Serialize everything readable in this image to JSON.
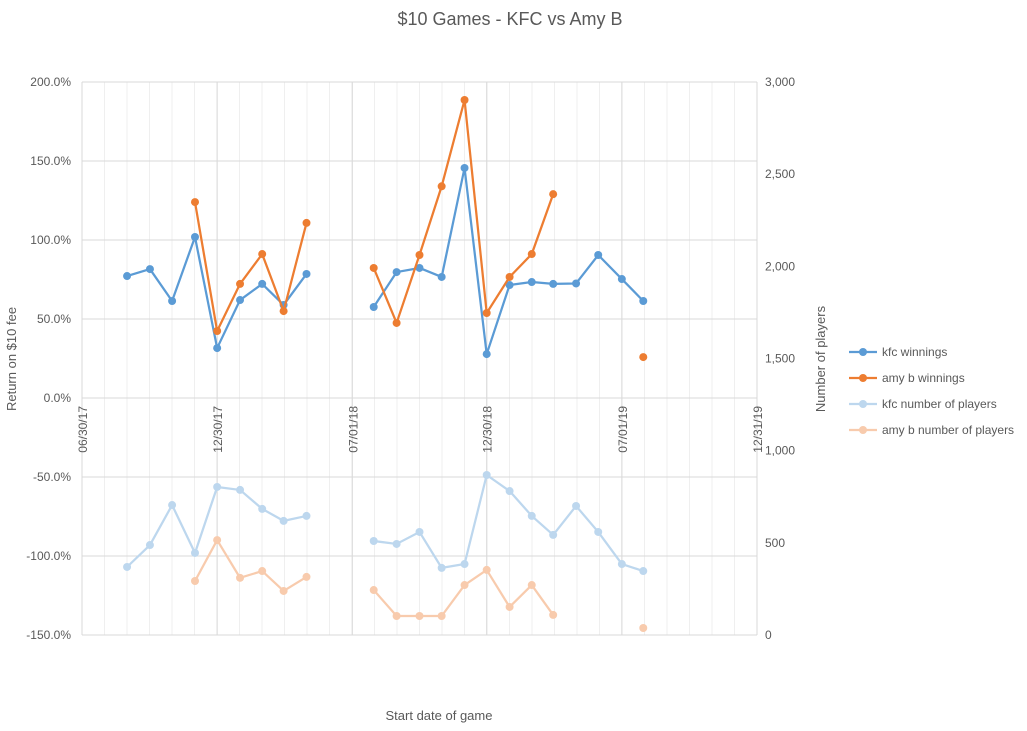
{
  "chart_data": {
    "type": "line",
    "title": "$10 Games - KFC vs Amy B",
    "xlabel": "Start date of game",
    "ylabel": "Return on $10 fee",
    "y2label": "Number of players",
    "xlim": [
      "2017-06-30",
      "2019-12-31"
    ],
    "x_ticks": [
      {
        "date": "2017-06-30",
        "label": "06/30/17"
      },
      {
        "date": "2017-12-30",
        "label": "12/30/17"
      },
      {
        "date": "2018-07-01",
        "label": "07/01/18"
      },
      {
        "date": "2018-12-30",
        "label": "12/30/18"
      },
      {
        "date": "2019-07-01",
        "label": "07/01/19"
      },
      {
        "date": "2019-12-31",
        "label": "12/31/19"
      }
    ],
    "ylim": [
      -150,
      200
    ],
    "y_ticks": [
      {
        "value": 200,
        "label": "200.0%"
      },
      {
        "value": 150,
        "label": "150.0%"
      },
      {
        "value": 100,
        "label": "100.0%"
      },
      {
        "value": 50,
        "label": "50.0%"
      },
      {
        "value": 0,
        "label": "0.0%"
      },
      {
        "value": -50,
        "label": "-50.0%"
      },
      {
        "value": -100,
        "label": "-100.0%"
      },
      {
        "value": -150,
        "label": "-150.0%"
      }
    ],
    "y2lim": [
      0,
      3000
    ],
    "y2_ticks": [
      {
        "value": 3000,
        "label": "3,000"
      },
      {
        "value": 2500,
        "label": "2,500"
      },
      {
        "value": 2000,
        "label": "2,000"
      },
      {
        "value": 1500,
        "label": "1,500"
      },
      {
        "value": 1000,
        "label": "1,000"
      },
      {
        "value": 500,
        "label": "500"
      },
      {
        "value": 0,
        "label": "0"
      }
    ],
    "grid": true,
    "legend_position": "right",
    "series": [
      {
        "name": "kfc winnings",
        "axis": "left",
        "color": "#5B9BD5",
        "segments": [
          [
            [
              "2017-08-30",
              77.2
            ],
            [
              "2017-09-30",
              81.6
            ],
            [
              "2017-10-30",
              61.4
            ],
            [
              "2017-11-30",
              101.9
            ],
            [
              "2017-12-30",
              31.6
            ],
            [
              "2018-01-30",
              62.0
            ],
            [
              "2018-03-01",
              72.2
            ],
            [
              "2018-03-30",
              58.9
            ],
            [
              "2018-04-30",
              78.5
            ]
          ],
          [
            [
              "2018-07-30",
              57.6
            ],
            [
              "2018-08-30",
              79.7
            ],
            [
              "2018-09-30",
              82.3
            ],
            [
              "2018-10-30",
              76.6
            ],
            [
              "2018-11-30",
              145.6
            ],
            [
              "2018-12-30",
              27.8
            ],
            [
              "2019-01-30",
              71.5
            ],
            [
              "2019-03-01",
              73.4
            ],
            [
              "2019-03-30",
              72.2
            ],
            [
              "2019-04-30",
              72.5
            ],
            [
              "2019-05-30",
              90.5
            ],
            [
              "2019-07-01",
              75.3
            ],
            [
              "2019-07-30",
              61.4
            ]
          ]
        ]
      },
      {
        "name": "amy b winnings",
        "axis": "left",
        "color": "#ED7D31",
        "segments": [
          [
            [
              "2017-11-30",
              124.0
            ],
            [
              "2017-12-30",
              42.4
            ],
            [
              "2018-01-30",
              72.2
            ],
            [
              "2018-03-01",
              91.1
            ],
            [
              "2018-03-30",
              55.0
            ],
            [
              "2018-04-30",
              110.8
            ]
          ],
          [
            [
              "2018-07-30",
              82.3
            ],
            [
              "2018-08-30",
              47.5
            ],
            [
              "2018-09-30",
              90.5
            ],
            [
              "2018-10-30",
              134.0
            ],
            [
              "2018-11-30",
              188.6
            ],
            [
              "2018-12-30",
              53.8
            ],
            [
              "2019-01-30",
              76.6
            ],
            [
              "2019-03-01",
              91.1
            ],
            [
              "2019-03-30",
              129.0
            ]
          ],
          [
            [
              "2019-07-30",
              25.9
            ]
          ]
        ]
      },
      {
        "name": "kfc number of players",
        "axis": "right",
        "color": "#BDD7EE",
        "segments": [
          [
            [
              "2017-08-30",
              369
            ],
            [
              "2017-09-30",
              488
            ],
            [
              "2017-10-30",
              705
            ],
            [
              "2017-11-30",
              445
            ],
            [
              "2017-12-30",
              803
            ],
            [
              "2018-01-30",
              787
            ],
            [
              "2018-03-01",
              684
            ],
            [
              "2018-03-30",
              619
            ],
            [
              "2018-04-30",
              646
            ]
          ],
          [
            [
              "2018-07-30",
              510
            ],
            [
              "2018-08-30",
              494
            ],
            [
              "2018-09-30",
              559
            ],
            [
              "2018-10-30",
              364
            ],
            [
              "2018-11-30",
              385
            ],
            [
              "2018-12-30",
              868
            ],
            [
              "2019-01-30",
              781
            ],
            [
              "2019-03-01",
              646
            ],
            [
              "2019-03-30",
              543
            ],
            [
              "2019-04-30",
              700
            ],
            [
              "2019-05-30",
              559
            ],
            [
              "2019-07-01",
              385
            ],
            [
              "2019-07-30",
              347
            ]
          ]
        ]
      },
      {
        "name": "amy b number of players",
        "axis": "right",
        "color": "#F8CBAD",
        "segments": [
          [
            [
              "2017-11-30",
              293
            ],
            [
              "2017-12-30",
              515
            ],
            [
              "2018-01-30",
              310
            ],
            [
              "2018-03-01",
              347
            ],
            [
              "2018-03-30",
              239
            ],
            [
              "2018-04-30",
              315
            ]
          ],
          [
            [
              "2018-07-30",
              244
            ],
            [
              "2018-08-30",
              103
            ],
            [
              "2018-09-30",
              103
            ],
            [
              "2018-10-30",
              103
            ],
            [
              "2018-11-30",
              271
            ],
            [
              "2018-12-30",
              353
            ],
            [
              "2019-01-30",
              152
            ],
            [
              "2019-03-01",
              271
            ],
            [
              "2019-03-30",
              109
            ]
          ],
          [
            [
              "2019-07-30",
              38
            ]
          ]
        ]
      }
    ]
  }
}
